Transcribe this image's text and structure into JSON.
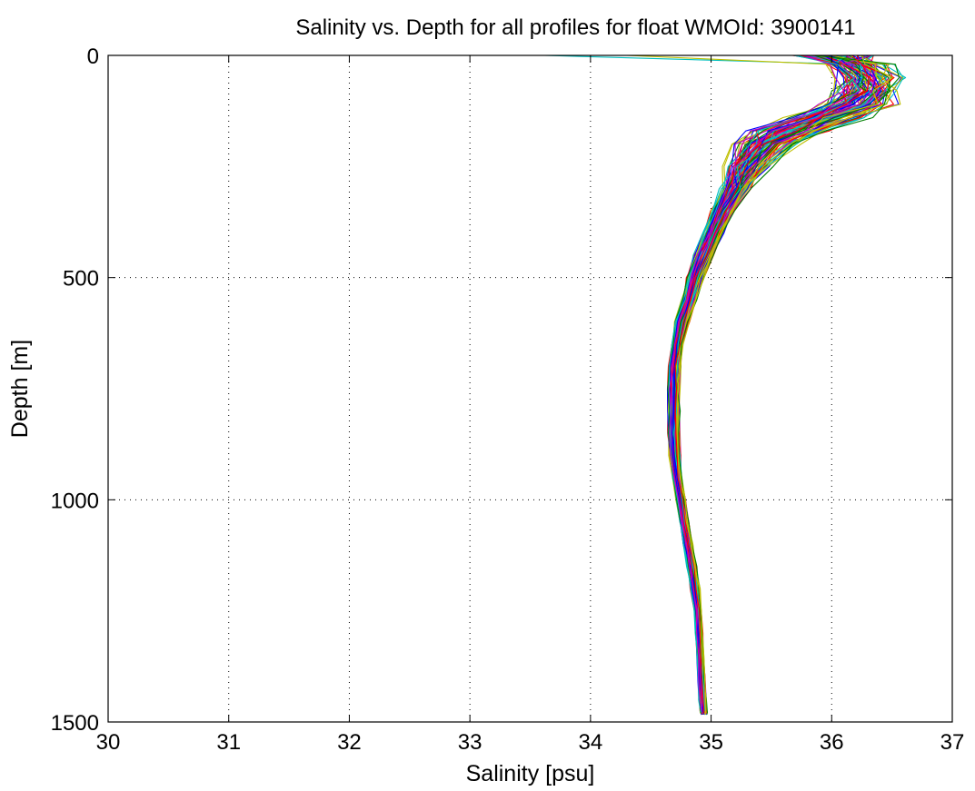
{
  "chart_data": {
    "type": "line",
    "title": "Salinity vs. Depth for all profiles for float WMOId: 3900141",
    "xlabel": "Salinity [psu]",
    "ylabel": "Depth [m]",
    "xlim": [
      30,
      37
    ],
    "ylim": [
      0,
      1500
    ],
    "y_reversed": true,
    "grid": true,
    "x_ticks": [
      "30",
      "31",
      "32",
      "33",
      "34",
      "35",
      "36",
      "37"
    ],
    "y_ticks": [
      "0",
      "500",
      "1000",
      "1500"
    ],
    "series_colors": [
      "#0000ff",
      "#008000",
      "#ff0000",
      "#00bfbf",
      "#bf00bf",
      "#bfbf00"
    ],
    "profile_count": 90,
    "depth": [
      0,
      20,
      50,
      80,
      110,
      140,
      170,
      200,
      250,
      300,
      350,
      400,
      450,
      500,
      550,
      600,
      650,
      700,
      750,
      800,
      850,
      900,
      950,
      1000,
      1050,
      1100,
      1150,
      1200,
      1250,
      1300,
      1350,
      1400,
      1450,
      1480
    ],
    "mean_salinity": [
      36.05,
      36.2,
      36.3,
      36.3,
      36.2,
      35.95,
      35.65,
      35.45,
      35.3,
      35.2,
      35.1,
      35.02,
      34.94,
      34.87,
      34.82,
      34.76,
      34.72,
      34.7,
      34.69,
      34.69,
      34.69,
      34.7,
      34.72,
      34.75,
      34.78,
      34.81,
      34.84,
      34.87,
      34.89,
      34.9,
      34.91,
      34.92,
      34.93,
      34.94
    ],
    "spread": [
      0.25,
      0.2,
      0.2,
      0.2,
      0.22,
      0.25,
      0.25,
      0.2,
      0.15,
      0.12,
      0.1,
      0.09,
      0.08,
      0.07,
      0.06,
      0.06,
      0.05,
      0.05,
      0.05,
      0.05,
      0.05,
      0.05,
      0.04,
      0.04,
      0.04,
      0.04,
      0.04,
      0.04,
      0.03,
      0.03,
      0.03,
      0.03,
      0.03,
      0.03
    ]
  }
}
